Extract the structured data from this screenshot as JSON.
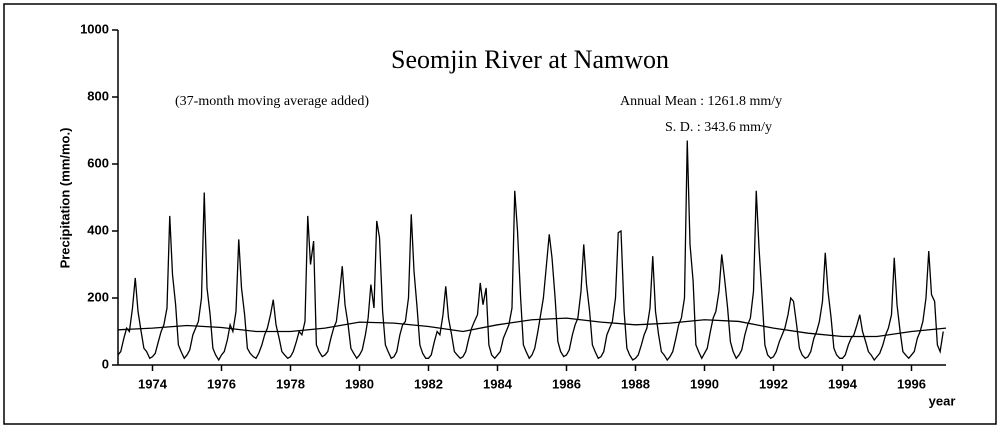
{
  "chart_data": {
    "type": "line",
    "title": "Seomjin River at Namwon",
    "annotations": [
      "(37-month moving average added)",
      "Annual Mean : 1261.8 mm/y",
      "S. D. :  343.6 mm/y"
    ],
    "x_label": "year",
    "y_label": "Precipitation (mm/mo.)",
    "xlim": [
      1973,
      1997
    ],
    "xticks": [
      1974,
      1976,
      1978,
      1980,
      1982,
      1984,
      1986,
      1988,
      1990,
      1992,
      1994,
      1996
    ],
    "ylim": [
      0,
      1000
    ],
    "yticks": [
      0,
      200,
      400,
      600,
      800,
      1000
    ],
    "series": [
      {
        "color": "#000000",
        "x": [
          1973.0,
          1973.08,
          1973.17,
          1973.25,
          1973.33,
          1973.42,
          1973.5,
          1973.58,
          1973.67,
          1973.75,
          1973.83,
          1973.92,
          1974.0,
          1974.08,
          1974.17,
          1974.25,
          1974.33,
          1974.42,
          1974.5,
          1974.58,
          1974.67,
          1974.75,
          1974.83,
          1974.92,
          1975.0,
          1975.08,
          1975.17,
          1975.25,
          1975.33,
          1975.42,
          1975.5,
          1975.58,
          1975.67,
          1975.75,
          1975.83,
          1975.92,
          1976.0,
          1976.08,
          1976.17,
          1976.25,
          1976.33,
          1976.42,
          1976.5,
          1976.58,
          1976.67,
          1976.75,
          1976.83,
          1976.92,
          1977.0,
          1977.08,
          1977.17,
          1977.25,
          1977.33,
          1977.42,
          1977.5,
          1977.58,
          1977.67,
          1977.75,
          1977.83,
          1977.92,
          1978.0,
          1978.08,
          1978.17,
          1978.25,
          1978.33,
          1978.42,
          1978.5,
          1978.58,
          1978.67,
          1978.75,
          1978.83,
          1978.92,
          1979.0,
          1979.08,
          1979.17,
          1979.25,
          1979.33,
          1979.42,
          1979.5,
          1979.58,
          1979.67,
          1979.75,
          1979.83,
          1979.92,
          1980.0,
          1980.08,
          1980.17,
          1980.25,
          1980.33,
          1980.42,
          1980.5,
          1980.58,
          1980.67,
          1980.75,
          1980.83,
          1980.92,
          1981.0,
          1981.08,
          1981.17,
          1981.25,
          1981.33,
          1981.42,
          1981.5,
          1981.58,
          1981.67,
          1981.75,
          1981.83,
          1981.92,
          1982.0,
          1982.08,
          1982.17,
          1982.25,
          1982.33,
          1982.42,
          1982.5,
          1982.58,
          1982.67,
          1982.75,
          1982.83,
          1982.92,
          1983.0,
          1983.08,
          1983.17,
          1983.25,
          1983.33,
          1983.42,
          1983.5,
          1983.58,
          1983.67,
          1983.75,
          1983.83,
          1983.92,
          1984.0,
          1984.08,
          1984.17,
          1984.25,
          1984.33,
          1984.42,
          1984.5,
          1984.58,
          1984.67,
          1984.75,
          1984.83,
          1984.92,
          1985.0,
          1985.08,
          1985.17,
          1985.25,
          1985.33,
          1985.42,
          1985.5,
          1985.58,
          1985.67,
          1985.75,
          1985.83,
          1985.92,
          1986.0,
          1986.08,
          1986.17,
          1986.25,
          1986.33,
          1986.42,
          1986.5,
          1986.58,
          1986.67,
          1986.75,
          1986.83,
          1986.92,
          1987.0,
          1987.08,
          1987.17,
          1987.25,
          1987.33,
          1987.42,
          1987.5,
          1987.58,
          1987.67,
          1987.75,
          1987.83,
          1987.92,
          1988.0,
          1988.08,
          1988.17,
          1988.25,
          1988.33,
          1988.42,
          1988.5,
          1988.58,
          1988.67,
          1988.75,
          1988.83,
          1988.92,
          1989.0,
          1989.08,
          1989.17,
          1989.25,
          1989.33,
          1989.42,
          1989.5,
          1989.58,
          1989.67,
          1989.75,
          1989.83,
          1989.92,
          1990.0,
          1990.08,
          1990.17,
          1990.25,
          1990.33,
          1990.42,
          1990.5,
          1990.58,
          1990.67,
          1990.75,
          1990.83,
          1990.92,
          1991.0,
          1991.08,
          1991.17,
          1991.25,
          1991.33,
          1991.42,
          1991.5,
          1991.58,
          1991.67,
          1991.75,
          1991.83,
          1991.92,
          1992.0,
          1992.08,
          1992.17,
          1992.25,
          1992.33,
          1992.42,
          1992.5,
          1992.58,
          1992.67,
          1992.75,
          1992.83,
          1992.92,
          1993.0,
          1993.08,
          1993.17,
          1993.25,
          1993.33,
          1993.42,
          1993.5,
          1993.58,
          1993.67,
          1993.75,
          1993.83,
          1993.92,
          1994.0,
          1994.08,
          1994.17,
          1994.25,
          1994.33,
          1994.42,
          1994.5,
          1994.58,
          1994.67,
          1994.75,
          1994.83,
          1994.92,
          1995.0,
          1995.08,
          1995.17,
          1995.25,
          1995.33,
          1995.42,
          1995.5,
          1995.58,
          1995.67,
          1995.75,
          1995.83,
          1995.92,
          1996.0,
          1996.08,
          1996.17,
          1996.25,
          1996.33,
          1996.42,
          1996.5,
          1996.58,
          1996.67,
          1996.75,
          1996.83,
          1996.92
        ],
        "values": [
          30,
          40,
          80,
          110,
          100,
          170,
          260,
          160,
          100,
          50,
          40,
          20,
          25,
          35,
          70,
          100,
          120,
          170,
          445,
          270,
          180,
          60,
          40,
          20,
          30,
          45,
          90,
          110,
          130,
          200,
          515,
          230,
          150,
          50,
          30,
          15,
          30,
          40,
          75,
          120,
          100,
          160,
          375,
          230,
          150,
          50,
          35,
          25,
          20,
          35,
          60,
          90,
          110,
          150,
          195,
          120,
          80,
          40,
          30,
          20,
          25,
          40,
          70,
          100,
          90,
          130,
          445,
          300,
          370,
          60,
          40,
          25,
          30,
          40,
          80,
          110,
          130,
          210,
          295,
          180,
          120,
          50,
          35,
          20,
          30,
          45,
          90,
          140,
          240,
          170,
          430,
          380,
          160,
          60,
          40,
          20,
          25,
          40,
          90,
          120,
          130,
          200,
          450,
          280,
          170,
          60,
          35,
          20,
          20,
          30,
          70,
          100,
          90,
          150,
          235,
          140,
          90,
          40,
          30,
          20,
          25,
          40,
          80,
          110,
          130,
          150,
          245,
          180,
          230,
          60,
          30,
          20,
          30,
          40,
          80,
          100,
          120,
          170,
          520,
          400,
          200,
          60,
          40,
          20,
          30,
          50,
          100,
          150,
          200,
          300,
          390,
          320,
          200,
          70,
          40,
          25,
          30,
          45,
          90,
          120,
          140,
          220,
          360,
          240,
          160,
          60,
          40,
          20,
          25,
          40,
          90,
          110,
          130,
          200,
          395,
          400,
          160,
          50,
          30,
          15,
          20,
          30,
          60,
          90,
          110,
          170,
          325,
          160,
          90,
          40,
          30,
          15,
          25,
          40,
          80,
          120,
          140,
          200,
          670,
          360,
          250,
          60,
          40,
          20,
          35,
          50,
          100,
          140,
          160,
          220,
          330,
          260,
          170,
          70,
          40,
          20,
          30,
          45,
          90,
          120,
          140,
          220,
          520,
          350,
          200,
          60,
          30,
          20,
          25,
          40,
          70,
          90,
          110,
          150,
          200,
          190,
          120,
          50,
          30,
          20,
          25,
          40,
          80,
          100,
          130,
          190,
          335,
          220,
          140,
          50,
          30,
          20,
          20,
          30,
          60,
          80,
          90,
          120,
          150,
          100,
          70,
          40,
          30,
          15,
          25,
          35,
          60,
          90,
          110,
          150,
          320,
          180,
          100,
          40,
          30,
          20,
          30,
          40,
          80,
          100,
          130,
          200,
          340,
          210,
          190,
          60,
          40,
          100
        ]
      },
      {
        "color": "#000000",
        "x": [
          1973,
          1974,
          1975,
          1976,
          1977,
          1978,
          1979,
          1980,
          1981,
          1982,
          1983,
          1984,
          1985,
          1986,
          1987,
          1988,
          1989,
          1990,
          1991,
          1992,
          1993,
          1994,
          1995,
          1996,
          1997
        ],
        "values": [
          105,
          110,
          118,
          112,
          100,
          100,
          110,
          128,
          125,
          115,
          100,
          120,
          135,
          140,
          128,
          120,
          125,
          135,
          130,
          110,
          95,
          85,
          85,
          100,
          110
        ]
      }
    ]
  }
}
